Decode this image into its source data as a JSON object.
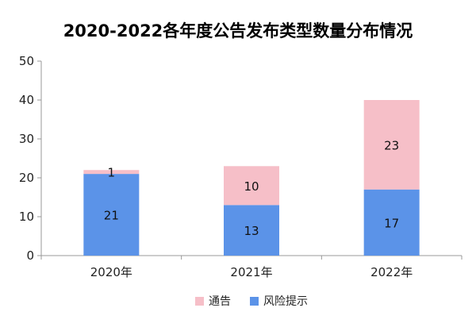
{
  "chart_data": {
    "type": "bar",
    "stacked": true,
    "title": "2020-2022各年度公告发布类型数量分布情况",
    "categories": [
      "2020年",
      "2021年",
      "2022年"
    ],
    "series": [
      {
        "name": "风险提示",
        "values": [
          21,
          13,
          17
        ],
        "color": "#5B93E8"
      },
      {
        "name": "通告",
        "values": [
          1,
          10,
          23
        ],
        "color": "#F6BFC8"
      }
    ],
    "legend_order": [
      "通告",
      "风险提示"
    ],
    "xlabel": "",
    "ylabel": "",
    "ylim": [
      0,
      50
    ],
    "yticks": [
      0,
      10,
      20,
      30,
      40,
      50
    ],
    "grid": false,
    "legend_position": "bottom"
  }
}
